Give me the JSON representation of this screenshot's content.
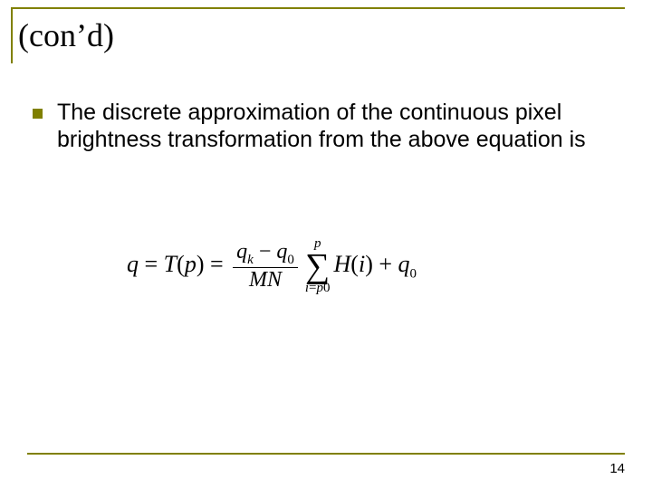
{
  "title": "(con’d)",
  "bullet_text": "The discrete approximation of the continuous pixel brightness transformation from the above equation is",
  "equation": {
    "lhs_q": "q",
    "eq1": " = ",
    "T": "T",
    "lp": "(",
    "p": "p",
    "rp": ")",
    "eq2": " = ",
    "num_qk": "q",
    "num_k": "k",
    "minus": " − ",
    "num_q0": "q",
    "num_0": "0",
    "den_MN": "MN",
    "sum_top": "p",
    "sum_sym": "∑",
    "sum_bot_i": "i",
    "sum_bot_eq": "=",
    "sum_bot_p": "p",
    "sum_bot_0": "0",
    "H": "H",
    "Hi_l": "(",
    "Hi_i": "i",
    "Hi_r": ")",
    "plus": " + ",
    "tail_q": "q",
    "tail_0": "0"
  },
  "page_number": "14",
  "colors": {
    "accent": "#808000",
    "text": "#000000",
    "background": "#ffffff"
  }
}
